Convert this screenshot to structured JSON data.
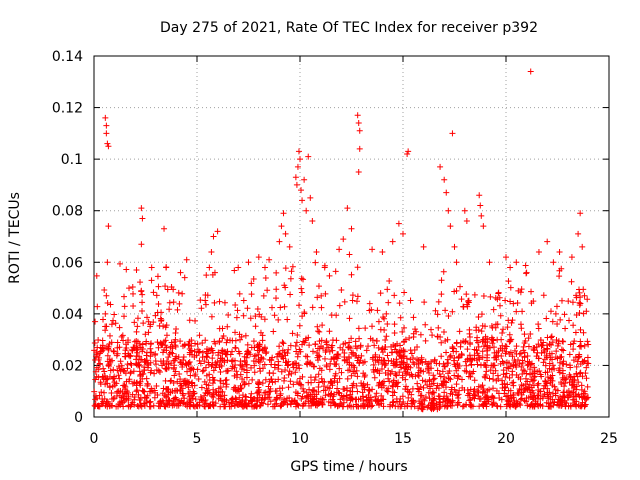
{
  "chart_data": {
    "type": "scatter",
    "title": "Day 275 of 2021, Rate Of TEC Index for receiver p392",
    "xlabel": "GPS time / hours",
    "ylabel": "ROTI / TECUs",
    "xlim": [
      0,
      25
    ],
    "ylim": [
      0,
      0.14
    ],
    "xticks": [
      "0",
      "5",
      "10",
      "15",
      "20",
      "25"
    ],
    "yticks": [
      "0",
      "0.02",
      "0.04",
      "0.06",
      "0.08",
      "0.1",
      "0.12",
      "0.14"
    ],
    "grid": true,
    "marker": "+",
    "color": "#ff0000",
    "series": [
      {
        "name": "ROTI",
        "x_range": [
          0,
          24
        ],
        "points": [
          [
            0.55,
            0.116
          ],
          [
            0.6,
            0.113
          ],
          [
            0.6,
            0.11
          ],
          [
            0.65,
            0.106
          ],
          [
            0.7,
            0.105
          ],
          [
            0.7,
            0.074
          ],
          [
            0.65,
            0.06
          ],
          [
            0.6,
            0.047
          ],
          [
            0.55,
            0.04
          ],
          [
            1.7,
            0.05
          ],
          [
            2.3,
            0.081
          ],
          [
            2.35,
            0.077
          ],
          [
            2.3,
            0.067
          ],
          [
            2.8,
            0.058
          ],
          [
            3.4,
            0.073
          ],
          [
            3.5,
            0.058
          ],
          [
            4.2,
            0.056
          ],
          [
            4.5,
            0.061
          ],
          [
            5.6,
            0.058
          ],
          [
            5.7,
            0.064
          ],
          [
            5.8,
            0.07
          ],
          [
            6.0,
            0.072
          ],
          [
            7.0,
            0.058
          ],
          [
            7.5,
            0.06
          ],
          [
            8.0,
            0.062
          ],
          [
            8.3,
            0.058
          ],
          [
            8.5,
            0.061
          ],
          [
            9.0,
            0.068
          ],
          [
            9.1,
            0.074
          ],
          [
            9.2,
            0.079
          ],
          [
            9.3,
            0.071
          ],
          [
            9.5,
            0.066
          ],
          [
            9.8,
            0.093
          ],
          [
            9.85,
            0.09
          ],
          [
            9.9,
            0.097
          ],
          [
            9.95,
            0.103
          ],
          [
            10.0,
            0.1
          ],
          [
            10.05,
            0.088
          ],
          [
            10.1,
            0.084
          ],
          [
            10.2,
            0.092
          ],
          [
            10.3,
            0.08
          ],
          [
            10.4,
            0.101
          ],
          [
            10.5,
            0.085
          ],
          [
            10.6,
            0.076
          ],
          [
            10.8,
            0.064
          ],
          [
            11.2,
            0.058
          ],
          [
            11.9,
            0.065
          ],
          [
            12.1,
            0.069
          ],
          [
            12.3,
            0.081
          ],
          [
            12.4,
            0.063
          ],
          [
            12.5,
            0.073
          ],
          [
            12.8,
            0.117
          ],
          [
            12.85,
            0.114
          ],
          [
            12.9,
            0.111
          ],
          [
            12.9,
            0.104
          ],
          [
            12.85,
            0.095
          ],
          [
            13.5,
            0.065
          ],
          [
            14.0,
            0.064
          ],
          [
            14.5,
            0.068
          ],
          [
            14.8,
            0.075
          ],
          [
            15.0,
            0.071
          ],
          [
            15.2,
            0.102
          ],
          [
            15.25,
            0.103
          ],
          [
            16.0,
            0.066
          ],
          [
            16.8,
            0.097
          ],
          [
            17.0,
            0.092
          ],
          [
            17.1,
            0.087
          ],
          [
            17.2,
            0.08
          ],
          [
            17.3,
            0.074
          ],
          [
            17.4,
            0.11
          ],
          [
            17.5,
            0.066
          ],
          [
            17.6,
            0.06
          ],
          [
            18.0,
            0.08
          ],
          [
            18.1,
            0.076
          ],
          [
            18.7,
            0.086
          ],
          [
            18.75,
            0.082
          ],
          [
            18.8,
            0.078
          ],
          [
            18.9,
            0.074
          ],
          [
            19.2,
            0.06
          ],
          [
            20.0,
            0.062
          ],
          [
            20.2,
            0.058
          ],
          [
            20.5,
            0.06
          ],
          [
            21.0,
            0.056
          ],
          [
            21.2,
            0.134
          ],
          [
            21.6,
            0.064
          ],
          [
            22.0,
            0.068
          ],
          [
            22.3,
            0.06
          ],
          [
            22.6,
            0.064
          ],
          [
            23.2,
            0.062
          ],
          [
            23.5,
            0.071
          ],
          [
            23.6,
            0.079
          ],
          [
            23.7,
            0.066
          ],
          [
            23.9,
            0.041
          ]
        ]
      }
    ]
  }
}
